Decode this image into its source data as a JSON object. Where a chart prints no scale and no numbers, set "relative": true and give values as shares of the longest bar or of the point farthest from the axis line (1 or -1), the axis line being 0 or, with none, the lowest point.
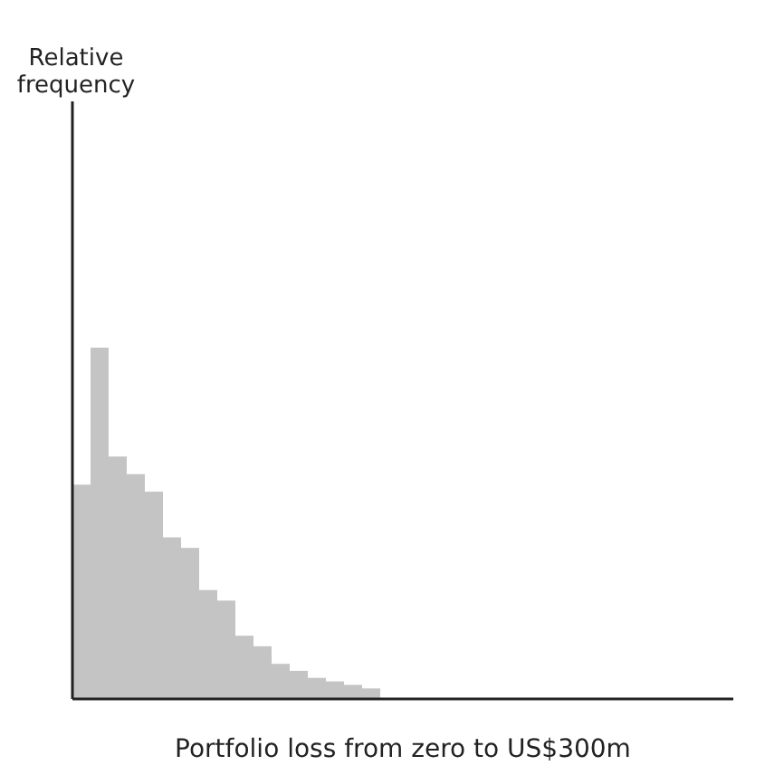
{
  "chart_data": {
    "type": "bar",
    "relative": true,
    "annotations": [
      "Relative frequency"
    ],
    "xlabel": "Portfolio loss from zero to US$300m",
    "color": "#c4c4c4",
    "categories": [
      null,
      null,
      null,
      null,
      null,
      null,
      null,
      null,
      null,
      null,
      null,
      null,
      null,
      null,
      null,
      null,
      null
    ],
    "values": [
      0.61,
      1,
      0.69,
      0.64,
      0.59,
      0.46,
      0.43,
      0.31,
      0.28,
      0.18,
      0.15,
      0.1,
      0.08,
      0.06,
      0.05,
      0.04,
      0.03
    ]
  }
}
